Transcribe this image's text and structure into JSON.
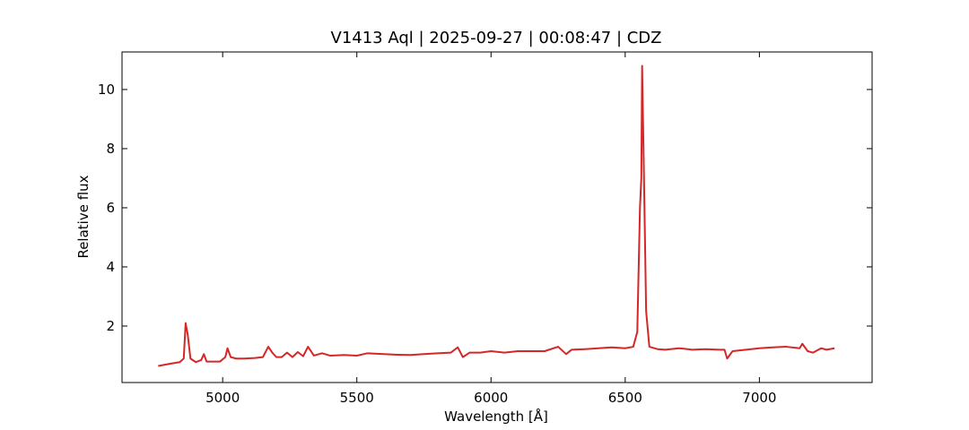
{
  "chart_data": {
    "type": "line",
    "title": "V1413 Aql | 2025-09-27 | 00:08:47 | CDZ",
    "x_label": "Wavelength [Å]",
    "y_label": "Relative flux",
    "xlim": [
      4625,
      7420
    ],
    "ylim": [
      0.09,
      11.27
    ],
    "xticks": [
      5000,
      5500,
      6000,
      6500,
      7000
    ],
    "yticks": [
      2,
      4,
      6,
      8,
      10
    ],
    "series": [
      {
        "name": "V1413 Aql",
        "color": "#d62728",
        "x": [
          4760,
          4800,
          4840,
          4855,
          4862,
          4870,
          4880,
          4900,
          4920,
          4930,
          4940,
          4960,
          4990,
          5010,
          5018,
          5030,
          5050,
          5080,
          5120,
          5150,
          5170,
          5185,
          5200,
          5220,
          5240,
          5260,
          5280,
          5300,
          5318,
          5340,
          5370,
          5400,
          5450,
          5500,
          5540,
          5600,
          5650,
          5700,
          5750,
          5800,
          5850,
          5876,
          5895,
          5920,
          5960,
          6000,
          6050,
          6100,
          6150,
          6200,
          6250,
          6280,
          6300,
          6350,
          6400,
          6450,
          6500,
          6530,
          6545,
          6555,
          6560,
          6563,
          6570,
          6578,
          6590,
          6620,
          6650,
          6700,
          6750,
          6800,
          6850,
          6870,
          6880,
          6900,
          6950,
          7000,
          7050,
          7100,
          7150,
          7160,
          7180,
          7200,
          7230,
          7250,
          7280
        ],
        "values": [
          0.65,
          0.72,
          0.78,
          0.9,
          2.1,
          1.7,
          0.9,
          0.78,
          0.85,
          1.05,
          0.8,
          0.8,
          0.8,
          0.95,
          1.25,
          0.95,
          0.9,
          0.9,
          0.92,
          0.95,
          1.3,
          1.1,
          0.95,
          0.95,
          1.1,
          0.95,
          1.12,
          0.98,
          1.3,
          1.0,
          1.08,
          1.0,
          1.02,
          1.0,
          1.08,
          1.05,
          1.03,
          1.02,
          1.05,
          1.08,
          1.1,
          1.28,
          0.95,
          1.1,
          1.1,
          1.15,
          1.1,
          1.15,
          1.15,
          1.15,
          1.3,
          1.05,
          1.2,
          1.22,
          1.25,
          1.28,
          1.25,
          1.3,
          1.8,
          6.0,
          7.0,
          10.8,
          7.0,
          2.5,
          1.3,
          1.22,
          1.2,
          1.25,
          1.2,
          1.22,
          1.2,
          1.2,
          0.9,
          1.15,
          1.2,
          1.25,
          1.28,
          1.3,
          1.25,
          1.4,
          1.15,
          1.1,
          1.25,
          1.2,
          1.25
        ]
      }
    ]
  }
}
